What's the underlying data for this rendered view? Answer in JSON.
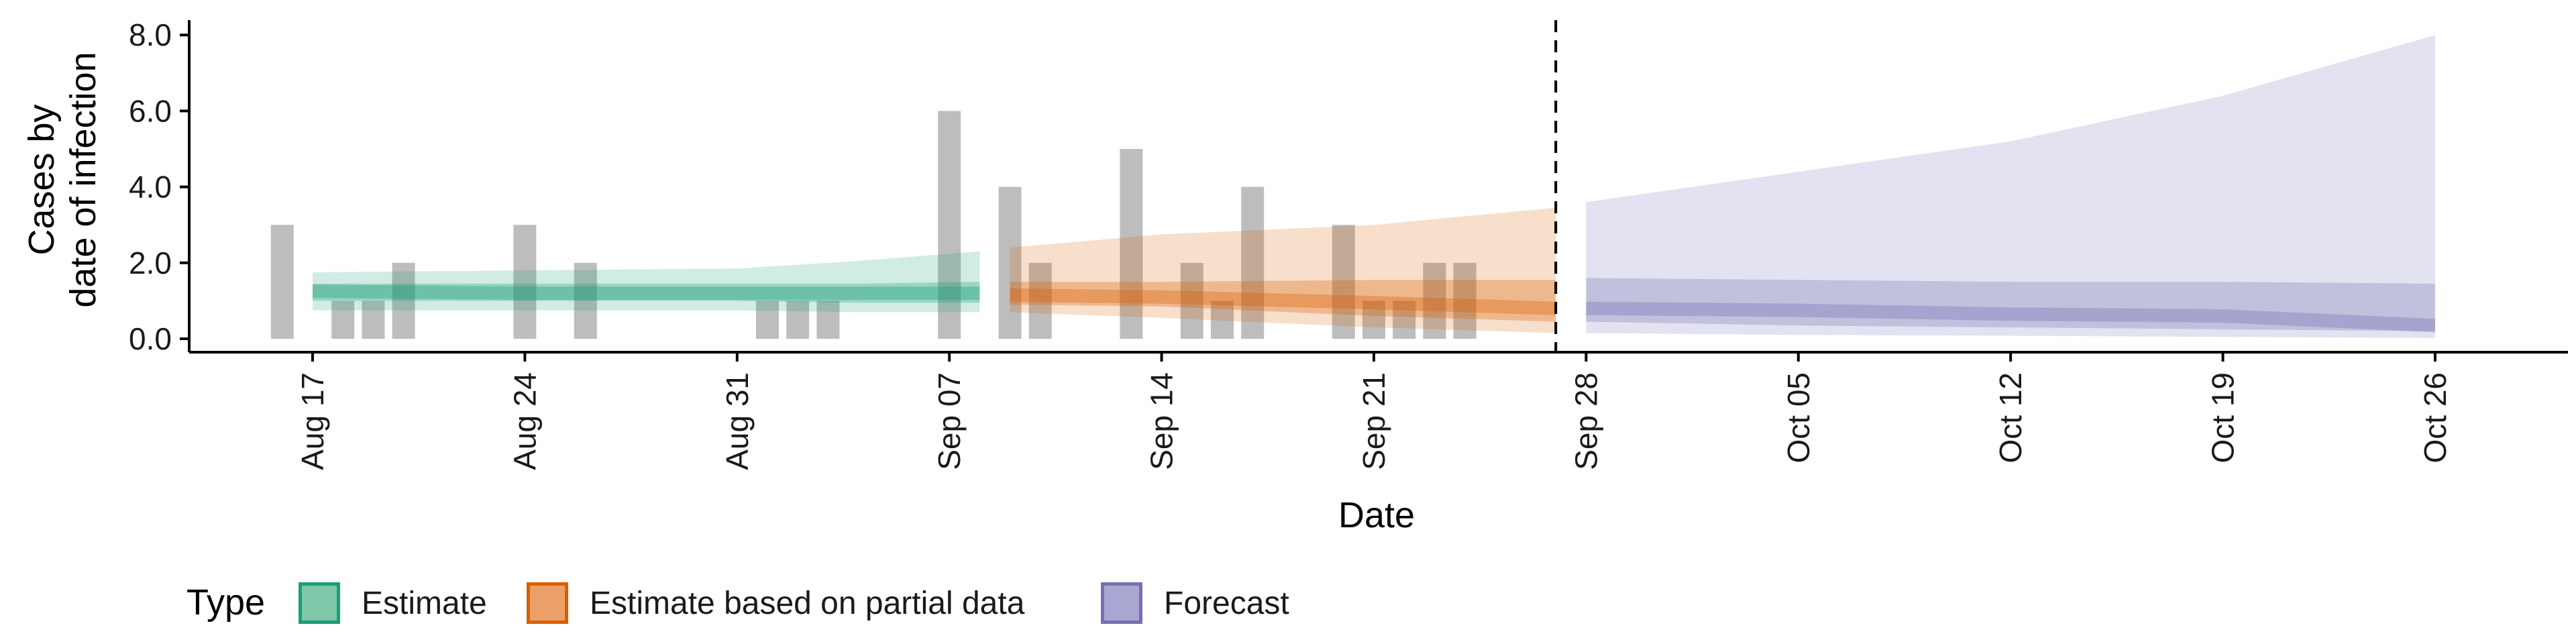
{
  "chart_data": {
    "type": "area",
    "title": "",
    "xlabel": "Date",
    "ylabel": "Cases by date of infection",
    "ylabel_lines": [
      "Cases by",
      "date of infection"
    ],
    "ylim": [
      0,
      8.2
    ],
    "y_ticks": [
      "0.0",
      "2.0",
      "4.0",
      "6.0",
      "8.0"
    ],
    "x_range": [
      "2020-08-13",
      "2020-10-29"
    ],
    "x_ticks": [
      {
        "date": "2020-08-17",
        "label": "Aug 17"
      },
      {
        "date": "2020-08-24",
        "label": "Aug 24"
      },
      {
        "date": "2020-08-31",
        "label": "Aug 31"
      },
      {
        "date": "2020-09-07",
        "label": "Sep 07"
      },
      {
        "date": "2020-09-14",
        "label": "Sep 14"
      },
      {
        "date": "2020-09-21",
        "label": "Sep 21"
      },
      {
        "date": "2020-09-28",
        "label": "Sep 28"
      },
      {
        "date": "2020-10-05",
        "label": "Oct 05"
      },
      {
        "date": "2020-10-12",
        "label": "Oct 12"
      },
      {
        "date": "2020-10-19",
        "label": "Oct 19"
      },
      {
        "date": "2020-10-26",
        "label": "Oct 26"
      }
    ],
    "vline_date": "2020-09-27",
    "observed_cases": [
      {
        "date": "2020-08-16",
        "value": 3
      },
      {
        "date": "2020-08-18",
        "value": 1
      },
      {
        "date": "2020-08-19",
        "value": 1
      },
      {
        "date": "2020-08-20",
        "value": 2
      },
      {
        "date": "2020-08-24",
        "value": 3
      },
      {
        "date": "2020-08-26",
        "value": 2
      },
      {
        "date": "2020-09-01",
        "value": 1
      },
      {
        "date": "2020-09-02",
        "value": 1
      },
      {
        "date": "2020-09-03",
        "value": 1
      },
      {
        "date": "2020-09-07",
        "value": 6
      },
      {
        "date": "2020-09-09",
        "value": 4
      },
      {
        "date": "2020-09-10",
        "value": 2
      },
      {
        "date": "2020-09-13",
        "value": 5
      },
      {
        "date": "2020-09-15",
        "value": 2
      },
      {
        "date": "2020-09-16",
        "value": 1
      },
      {
        "date": "2020-09-17",
        "value": 4
      },
      {
        "date": "2020-09-20",
        "value": 3
      },
      {
        "date": "2020-09-21",
        "value": 1
      },
      {
        "date": "2020-09-22",
        "value": 1
      },
      {
        "date": "2020-09-23",
        "value": 2
      },
      {
        "date": "2020-09-24",
        "value": 2
      }
    ],
    "series": [
      {
        "name": "Estimate",
        "color": "#1b9e77",
        "points": [
          {
            "date": "2020-08-17",
            "outer": [
              0.75,
              1.75
            ],
            "inner": [
              1.0,
              1.45
            ],
            "median": 1.25
          },
          {
            "date": "2020-08-24",
            "outer": [
              0.75,
              1.8
            ],
            "inner": [
              1.0,
              1.45
            ],
            "median": 1.2
          },
          {
            "date": "2020-08-31",
            "outer": [
              0.75,
              1.85
            ],
            "inner": [
              1.0,
              1.45
            ],
            "median": 1.2
          },
          {
            "date": "2020-09-04",
            "outer": [
              0.7,
              2.05
            ],
            "inner": [
              0.95,
              1.45
            ],
            "median": 1.2
          },
          {
            "date": "2020-09-08",
            "outer": [
              0.7,
              2.3
            ],
            "inner": [
              0.95,
              1.5
            ],
            "median": 1.2
          }
        ]
      },
      {
        "name": "Estimate based on partial data",
        "color": "#d95f02",
        "points": [
          {
            "date": "2020-09-09",
            "outer": [
              0.7,
              2.4
            ],
            "inner": [
              0.9,
              1.5
            ],
            "median": 1.15
          },
          {
            "date": "2020-09-14",
            "outer": [
              0.55,
              2.75
            ],
            "inner": [
              0.85,
              1.5
            ],
            "median": 1.1
          },
          {
            "date": "2020-09-21",
            "outer": [
              0.3,
              3.0
            ],
            "inner": [
              0.6,
              1.55
            ],
            "median": 0.95
          },
          {
            "date": "2020-09-27",
            "outer": [
              0.15,
              3.45
            ],
            "inner": [
              0.45,
              1.55
            ],
            "median": 0.8
          }
        ]
      },
      {
        "name": "Forecast",
        "color": "#7570b3",
        "points": [
          {
            "date": "2020-09-28",
            "outer": [
              0.15,
              3.6
            ],
            "inner": [
              0.45,
              1.6
            ],
            "median": 0.8
          },
          {
            "date": "2020-10-05",
            "outer": [
              0.1,
              4.4
            ],
            "inner": [
              0.35,
              1.55
            ],
            "median": 0.75
          },
          {
            "date": "2020-10-12",
            "outer": [
              0.08,
              5.2
            ],
            "inner": [
              0.3,
              1.5
            ],
            "median": 0.65
          },
          {
            "date": "2020-10-19",
            "outer": [
              0.05,
              6.4
            ],
            "inner": [
              0.25,
              1.5
            ],
            "median": 0.6
          },
          {
            "date": "2020-10-26",
            "outer": [
              0.02,
              8.0
            ],
            "inner": [
              0.2,
              1.45
            ],
            "median": 0.35
          }
        ]
      }
    ],
    "legend": {
      "title": "Type",
      "position": "bottom-left",
      "items": [
        {
          "label": "Estimate",
          "fill": "#7fc7a8",
          "border": "#1b9e77"
        },
        {
          "label": "Estimate based on partial data",
          "fill": "#eba06a",
          "border": "#d95f02"
        },
        {
          "label": "Forecast",
          "fill": "#aaa6d2",
          "border": "#7570b3"
        }
      ]
    },
    "grid": false
  }
}
